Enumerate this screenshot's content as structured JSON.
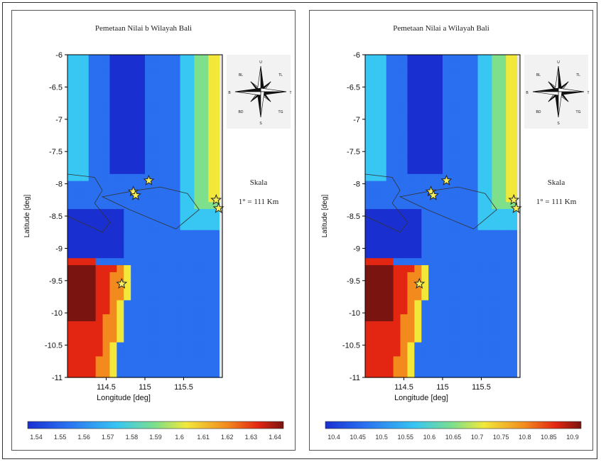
{
  "panels": [
    {
      "title": "Pemetaan Nilai b Wilayah Bali",
      "xlabel": "Longitude [deg]",
      "ylabel": "Latitude [deg]",
      "scale_title": "Skala",
      "scale_value": "1° = 111 Km",
      "yticks": [
        "-6",
        "-6.5",
        "-7",
        "-7.5",
        "-8",
        "-8.5",
        "-9",
        "-9.5",
        "-10",
        "-10.5",
        "-11"
      ],
      "xticks": [
        "114.5",
        "115",
        "115.5"
      ],
      "colorbar_ticks": [
        "1.54",
        "1.55",
        "1.56",
        "1.57",
        "1.58",
        "1.59",
        "1.6",
        "1.61",
        "1.62",
        "1.63",
        "1.64"
      ]
    },
    {
      "title": "Pemetaan Nilai a Wilayah Bali",
      "xlabel": "Longitude [deg]",
      "ylabel": "Latitude [deg]",
      "scale_title": "Skala",
      "scale_value": "1° = 111 Km",
      "yticks": [
        "-6",
        "-6.5",
        "-7",
        "-7.5",
        "-8",
        "-8.5",
        "-9",
        "-9.5",
        "-10",
        "-10.5",
        "-11"
      ],
      "xticks": [
        "114.5",
        "115",
        "115.5"
      ],
      "colorbar_ticks": [
        "10.4",
        "10.45",
        "10.5",
        "10.55",
        "10.6",
        "10.65",
        "10.7",
        "10.75",
        "10.8",
        "10.85",
        "10.9"
      ]
    }
  ],
  "compass_labels": {
    "north": "U",
    "south": "S",
    "east": "T",
    "west": "B",
    "northwest": "BL",
    "northeast": "TL",
    "southwest": "BD",
    "southeast": "TG"
  },
  "colors": {
    "deep_blue": "#1a2fd0",
    "blue": "#2a6ff0",
    "cyan": "#38c6f2",
    "green": "#7ee08a",
    "yellow": "#f2e83a",
    "orange": "#f28a1e",
    "red": "#e32612",
    "dark_red": "#7a1410"
  }
}
